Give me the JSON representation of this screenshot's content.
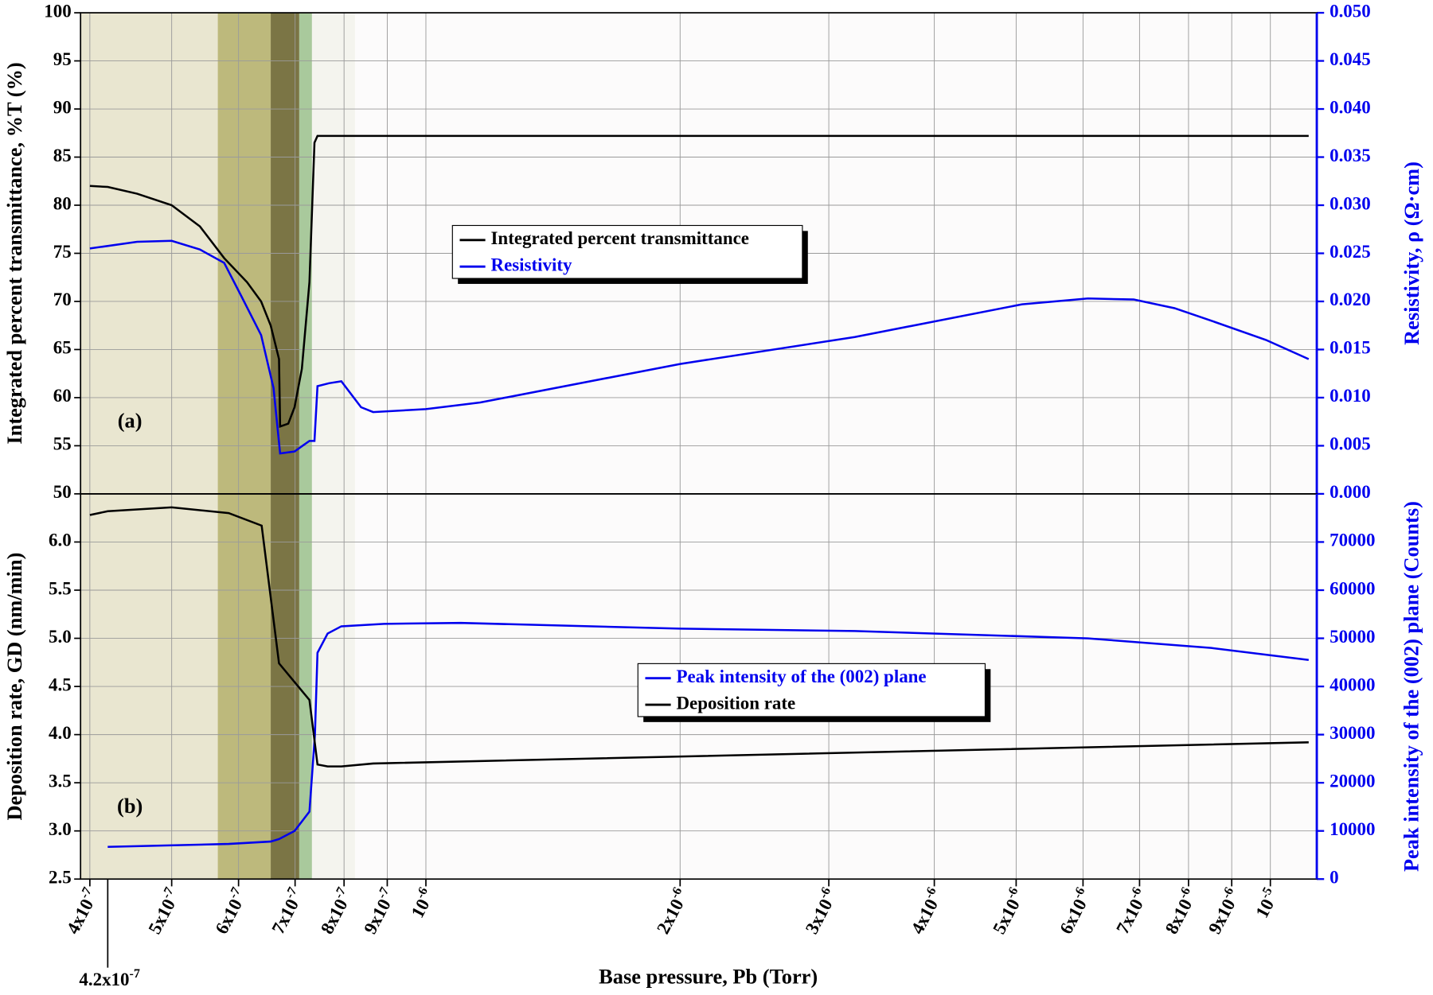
{
  "chart_data": {
    "type": "line",
    "log_x": true,
    "grid": true,
    "xlabel": "Base pressure, Pb (Torr)",
    "xlim": [
      3.9e-07,
      1.135e-05
    ],
    "xticks": [
      {
        "value": 4e-07,
        "label": "4x10-7"
      },
      {
        "value": 5e-07,
        "label": "5x10-7"
      },
      {
        "value": 6e-07,
        "label": "6x10-7"
      },
      {
        "value": 7e-07,
        "label": "7x10-7"
      },
      {
        "value": 8e-07,
        "label": "8x10-7"
      },
      {
        "value": 9e-07,
        "label": "9x10-7"
      },
      {
        "value": 1e-06,
        "label": "10-6"
      },
      {
        "value": 2e-06,
        "label": "2x10-6"
      },
      {
        "value": 3e-06,
        "label": "3x10-6"
      },
      {
        "value": 4e-06,
        "label": "4x10-6"
      },
      {
        "value": 5e-06,
        "label": "5x10-6"
      },
      {
        "value": 6e-06,
        "label": "6x10-6"
      },
      {
        "value": 7e-06,
        "label": "7x10-6"
      },
      {
        "value": 8e-06,
        "label": "8x10-6"
      },
      {
        "value": 9e-06,
        "label": "9x10-6"
      },
      {
        "value": 1e-05,
        "label": "10-5"
      }
    ],
    "bands": [
      {
        "x": [
          3.9e-07,
          5.67e-07
        ],
        "color": "#e9e6d0"
      },
      {
        "x": [
          5.67e-07,
          6.55e-07
        ],
        "color": "#bdb97c"
      },
      {
        "x": [
          6.55e-07,
          7.08e-07
        ],
        "color": "#7b7545"
      },
      {
        "x": [
          7.08e-07,
          7.33e-07
        ],
        "color": "#a9c99c"
      },
      {
        "x": [
          7.33e-07,
          8.24e-07
        ],
        "color": "#f4f4ee"
      }
    ],
    "annotations": [
      {
        "text": "4.2x10-7",
        "x": 4.2e-07
      }
    ],
    "panels": [
      {
        "label": "(a)",
        "ylabel": "Integrated percent transmittance, %T (%)",
        "ylim": [
          50,
          100
        ],
        "yticks": [
          50,
          55,
          60,
          65,
          70,
          75,
          80,
          85,
          90,
          95,
          100
        ],
        "y2label": "Resistivity, ρ (Ω·cm)",
        "y2lim": [
          0,
          0.05
        ],
        "y2ticks": [
          {
            "value": 0,
            "label": "0.000"
          },
          0.005,
          {
            "value": 0.01,
            "label": "0.010"
          },
          0.015,
          {
            "value": 0.02,
            "label": "0.020"
          },
          0.025,
          {
            "value": 0.03,
            "label": "0.030"
          },
          0.035,
          {
            "value": 0.04,
            "label": "0.040"
          },
          0.045,
          {
            "value": 0.05,
            "label": "0.050"
          }
        ],
        "series": [
          {
            "name": "Integrated percent transmittance",
            "color": "#000000",
            "x": [
              4e-07,
              4.2e-07,
              4.55e-07,
              5e-07,
              5.4e-07,
              5.77e-07,
              6.14e-07,
              6.38e-07,
              6.55e-07,
              6.7e-07,
              6.72e-07,
              6.87e-07,
              6.99e-07,
              7.13e-07,
              7.28e-07,
              7.38e-07,
              7.44e-07,
              1.11e-05
            ],
            "values": [
              82,
              81.9,
              81.2,
              80,
              77.8,
              74.5,
              72,
              70,
              67.5,
              64,
              57,
              57.3,
              59,
              63,
              72,
              86.5,
              87.2,
              87.2
            ]
          },
          {
            "name": "Resistivity",
            "color": "#0000ee",
            "axis": "y2",
            "x": [
              4e-07,
              4.55e-07,
              5e-07,
              5.4e-07,
              5.77e-07,
              6.05e-07,
              6.38e-07,
              6.6e-07,
              6.72e-07,
              6.99e-07,
              7.28e-07,
              7.38e-07,
              7.44e-07,
              7.68e-07,
              7.94e-07,
              8.38e-07,
              8.66e-07,
              1e-06,
              1.16e-06,
              2e-06,
              3.22e-06,
              5.08e-06,
              6.08e-06,
              6.89e-06,
              7.7e-06,
              8.51e-06,
              9.88e-06,
              1.11e-05
            ],
            "values": [
              0.0255,
              0.0262,
              0.0263,
              0.0254,
              0.024,
              0.0205,
              0.0165,
              0.011,
              0.0042,
              0.0044,
              0.0055,
              0.0055,
              0.0112,
              0.0115,
              0.0117,
              0.009,
              0.0085,
              0.0088,
              0.0095,
              0.0135,
              0.0163,
              0.0197,
              0.0203,
              0.0202,
              0.0193,
              0.018,
              0.016,
              0.014
            ]
          }
        ]
      },
      {
        "label": "(b)",
        "ylabel": "Deposition rate, GD (nm/min)",
        "ylim": [
          2.5,
          6.5
        ],
        "yticks": [
          2.5,
          {
            "value": 3,
            "label": "3.0"
          },
          3.5,
          {
            "value": 4,
            "label": "4.0"
          },
          4.5,
          {
            "value": 5,
            "label": "5.0"
          },
          5.5,
          {
            "value": 6,
            "label": "6.0"
          }
        ],
        "y2label": "Peak intensity of the (002) plane (Counts)",
        "y2lim": [
          0,
          80000
        ],
        "y2ticks": [
          0,
          10000,
          20000,
          30000,
          40000,
          50000,
          60000,
          70000
        ],
        "series": [
          {
            "name": "Peak intensity of the (002) plane",
            "color": "#0000ee",
            "axis": "y2",
            "x": [
              4.2e-07,
              5.84e-07,
              6.55e-07,
              6.7e-07,
              6.99e-07,
              7.28e-07,
              7.39e-07,
              7.44e-07,
              7.65e-07,
              7.94e-07,
              8.92e-07,
              1.1e-06,
              2e-06,
              3.22e-06,
              6.08e-06,
              8.51e-06,
              1.11e-05
            ],
            "values": [
              6700,
              7300,
              7800,
              8300,
              10000,
              14000,
              30000,
              47000,
              51000,
              52500,
              53000,
              53200,
              52000,
              51500,
              50000,
              48000,
              45500
            ]
          },
          {
            "name": "Deposition rate",
            "color": "#000000",
            "x": [
              4e-07,
              4.2e-07,
              5e-07,
              5.84e-07,
              6.39e-07,
              6.7e-07,
              7.28e-07,
              7.37e-07,
              7.44e-07,
              7.65e-07,
              7.94e-07,
              8.66e-07,
              1.11e-05
            ],
            "values": [
              6.28,
              6.32,
              6.36,
              6.3,
              6.17,
              4.74,
              4.36,
              3.98,
              3.69,
              3.67,
              3.67,
              3.7,
              3.92
            ]
          }
        ]
      }
    ]
  }
}
